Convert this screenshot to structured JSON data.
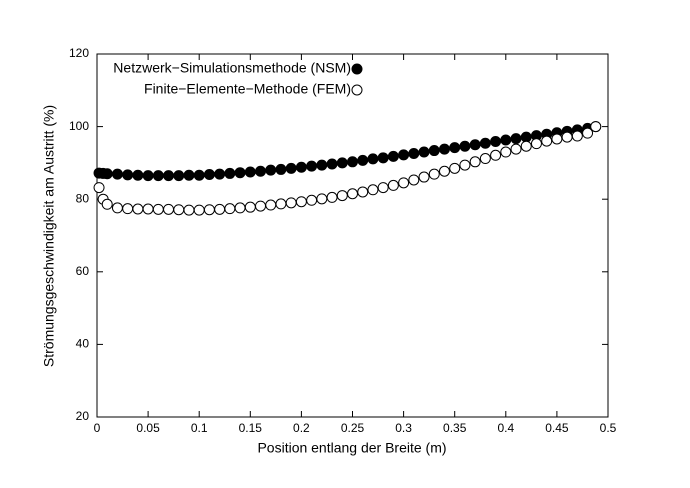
{
  "chart_data": {
    "type": "scatter",
    "x_label": "Position entlang der Breite (m)",
    "y_label": "Strömungsgeschwindigkeit am Austritt (%)",
    "x": [
      0.002,
      0.006,
      0.01,
      0.02,
      0.03,
      0.04,
      0.05,
      0.06,
      0.07,
      0.08,
      0.09,
      0.1,
      0.11,
      0.12,
      0.13,
      0.14,
      0.15,
      0.16,
      0.17,
      0.18,
      0.19,
      0.2,
      0.21,
      0.22,
      0.23,
      0.24,
      0.25,
      0.26,
      0.27,
      0.28,
      0.29,
      0.3,
      0.31,
      0.32,
      0.33,
      0.34,
      0.35,
      0.36,
      0.37,
      0.38,
      0.39,
      0.4,
      0.41,
      0.42,
      0.43,
      0.44,
      0.45,
      0.46,
      0.47,
      0.48,
      0.488
    ],
    "series": [
      {
        "name": "Netzwerk−Simulationsmethode (NSM)",
        "color": "#000000",
        "filled": true,
        "values": [
          87.2,
          87.1,
          87.0,
          86.9,
          86.7,
          86.6,
          86.5,
          86.5,
          86.5,
          86.5,
          86.6,
          86.6,
          86.8,
          86.9,
          87.1,
          87.3,
          87.5,
          87.7,
          88.0,
          88.2,
          88.5,
          88.8,
          89.1,
          89.4,
          89.7,
          90.0,
          90.3,
          90.7,
          91.1,
          91.4,
          91.8,
          92.2,
          92.6,
          93.0,
          93.4,
          93.8,
          94.2,
          94.6,
          95.0,
          95.4,
          95.9,
          96.3,
          96.7,
          97.1,
          97.5,
          97.9,
          98.3,
          98.7,
          99.1,
          99.5,
          100.0
        ]
      },
      {
        "name": "Finite−Elemente−Methode (FEM)",
        "color": "#000000",
        "filled": false,
        "values": [
          83.2,
          80.0,
          78.6,
          77.6,
          77.4,
          77.3,
          77.3,
          77.2,
          77.2,
          77.1,
          77.0,
          77.0,
          77.1,
          77.2,
          77.4,
          77.6,
          77.8,
          78.1,
          78.4,
          78.7,
          79.0,
          79.3,
          79.7,
          80.1,
          80.5,
          81.0,
          81.5,
          82.0,
          82.6,
          83.2,
          83.8,
          84.5,
          85.3,
          86.1,
          86.9,
          87.7,
          88.5,
          89.4,
          90.3,
          91.2,
          92.1,
          93.0,
          93.8,
          94.6,
          95.3,
          96.0,
          96.6,
          97.1,
          97.4,
          98.2,
          100.0
        ]
      }
    ],
    "xlim": [
      0,
      0.5
    ],
    "xticks": [
      0,
      0.05,
      0.1,
      0.15,
      0.2,
      0.25,
      0.3,
      0.35,
      0.4,
      0.45,
      0.5
    ],
    "ylim": [
      20,
      120
    ],
    "yticks": [
      20,
      40,
      60,
      80,
      100,
      120
    ],
    "grid": false,
    "legend": "upper left"
  }
}
